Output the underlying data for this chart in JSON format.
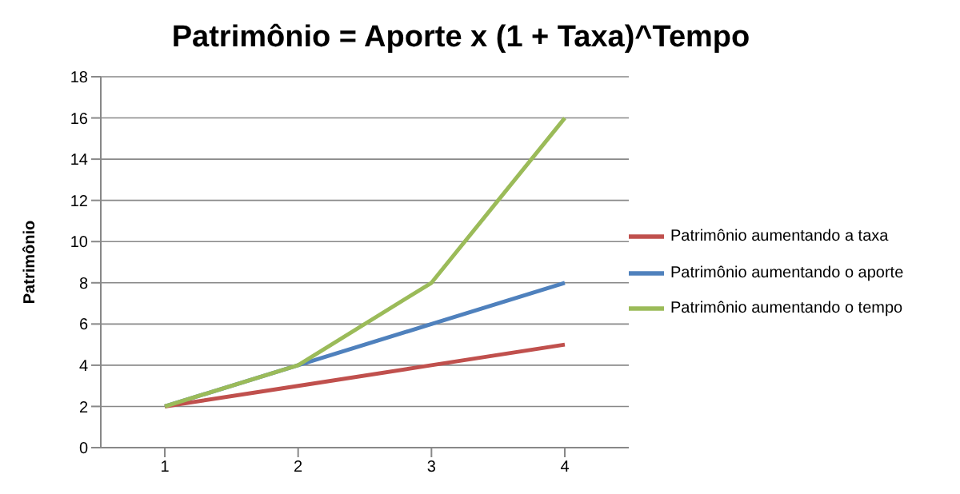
{
  "chart_data": {
    "type": "line",
    "title": "Patrimônio = Aporte x (1 + Taxa)^Tempo",
    "ylabel": "Patrimônio",
    "categories": [
      "1",
      "2",
      "3",
      "4"
    ],
    "series": [
      {
        "name": "Patrimônio aumentando  o aporte",
        "color": "#4f81bd",
        "values": [
          2,
          4,
          6,
          8
        ]
      },
      {
        "name": "Patrimônio aumentando  a taxa",
        "color": "#c0504d",
        "values": [
          2,
          3,
          4,
          5
        ]
      },
      {
        "name": "Patrimônio aumentando  o tempo",
        "color": "#9bbb59",
        "values": [
          2,
          4,
          8,
          16
        ]
      }
    ],
    "ylim": [
      0,
      18
    ],
    "yticks": [
      0,
      2,
      4,
      6,
      8,
      10,
      12,
      14,
      16,
      18
    ],
    "grid": "y",
    "legend": "right",
    "marker": "none",
    "line_style": "solid"
  }
}
